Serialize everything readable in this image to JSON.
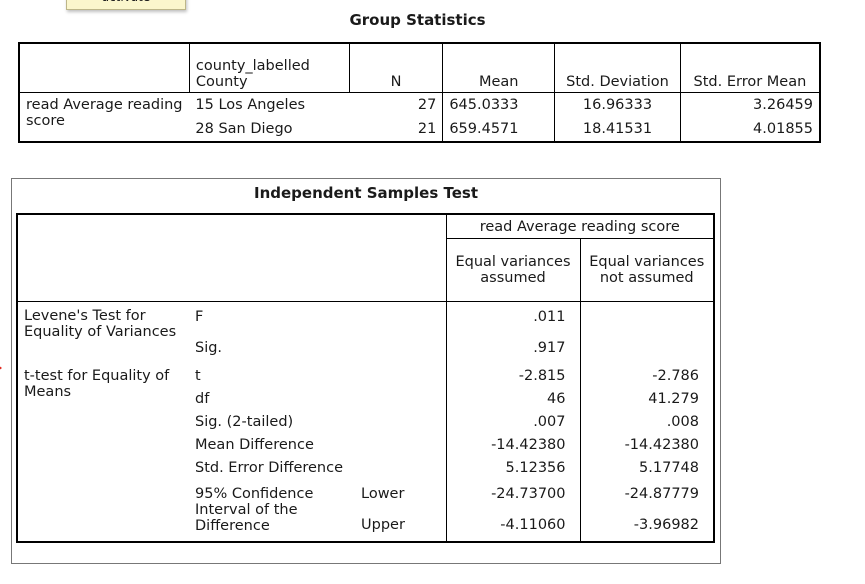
{
  "tooltip_text": "activate",
  "group_statistics": {
    "title": "Group Statistics",
    "headers": {
      "group_var": "county_labelled County",
      "n": "N",
      "mean": "Mean",
      "std_dev": "Std. Deviation",
      "std_err": "Std. Error Mean"
    },
    "row_label": "read Average reading score",
    "rows": [
      {
        "group": "15 Los Angeles",
        "n": "27",
        "mean": "645.0333",
        "std_dev": "16.96333",
        "std_err": "3.26459"
      },
      {
        "group": "28 San Diego",
        "n": "21",
        "mean": "659.4571",
        "std_dev": "18.41531",
        "std_err": "4.01855"
      }
    ]
  },
  "independent_samples_test": {
    "title": "Independent Samples Test",
    "variable_header": "read Average reading score",
    "col_equal": "Equal variances assumed",
    "col_not_equal": "Equal variances not assumed",
    "levene_label": "Levene's Test for Equality of Variances",
    "ttest_label": "t-test for Equality of Means",
    "ci_label": "95% Confidence Interval of the Difference",
    "rows": {
      "f": {
        "label": "F",
        "v1": ".011",
        "v2": ""
      },
      "sig": {
        "label": "Sig.",
        "v1": ".917",
        "v2": ""
      },
      "t": {
        "label": "t",
        "v1": "-2.815",
        "v2": "-2.786"
      },
      "df": {
        "label": "df",
        "v1": "46",
        "v2": "41.279"
      },
      "sig2": {
        "label": "Sig. (2-tailed)",
        "v1": ".007",
        "v2": ".008"
      },
      "mean_diff": {
        "label": "Mean Difference",
        "v1": "-14.42380",
        "v2": "-14.42380"
      },
      "se_diff": {
        "label": "Std. Error Difference",
        "v1": "5.12356",
        "v2": "5.17748"
      },
      "lower": {
        "label": "Lower",
        "v1": "-24.73700",
        "v2": "-24.87779"
      },
      "upper": {
        "label": "Upper",
        "v1": "-4.11060",
        "v2": "-3.96982"
      }
    }
  }
}
